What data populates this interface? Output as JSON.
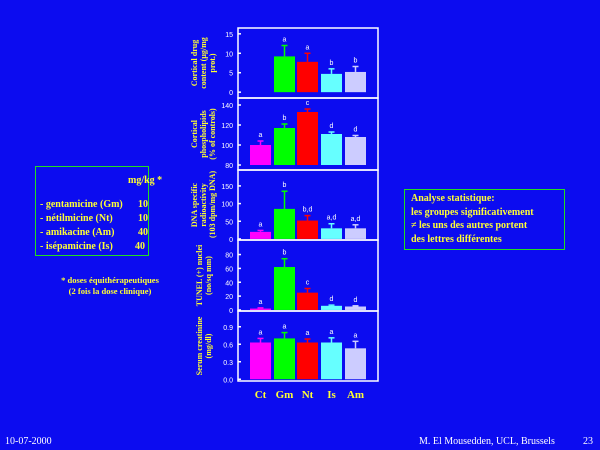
{
  "legend": {
    "unit_header": "mg/kg *",
    "items": [
      {
        "label": "- gentamicine (Gm)",
        "dose": "10"
      },
      {
        "label": "- nétilmicine (Nt)",
        "dose": "10"
      },
      {
        "label": "- amikacine (Am)",
        "dose": "40"
      },
      {
        "label": "- isépamicine (Is)",
        "dose": "40"
      }
    ],
    "note_line1": "* doses équithérapeutiques",
    "note_line2": "(2 fois la dose clinique)"
  },
  "stats_box": {
    "line1": "Analyse statistique:",
    "line2": "les groupes significativement",
    "line3": "≠ les uns des autres portent",
    "line4": "des lettres différentes"
  },
  "footer": {
    "date": "10-07-2000",
    "author": "M. El Mousedden, UCL, Brussels",
    "page": "23"
  },
  "colors": {
    "Ct": "#ff00ff",
    "Gm": "#00ff00",
    "Nt": "#ff0000",
    "Is": "#66ffff",
    "Am": "#ccccff"
  },
  "chart_data": [
    {
      "type": "bar",
      "ylabel": [
        "Cortical drug",
        "content (µg/mg",
        "prot.)"
      ],
      "yticks": [
        "0",
        "5",
        "10",
        "15"
      ],
      "ytick_values": [
        0,
        5,
        10,
        15
      ],
      "ylim": [
        -1.5,
        16.5
      ],
      "baseline": 0,
      "categories": [
        "Ct",
        "Gm",
        "Nt",
        "Is",
        "Am"
      ],
      "values": [
        null,
        9.2,
        7.8,
        4.7,
        5.2
      ],
      "errors": [
        null,
        2.8,
        2.2,
        1.3,
        1.4
      ],
      "letters": [
        "",
        "a",
        "a",
        "b",
        "b"
      ]
    },
    {
      "type": "bar",
      "ylabel": [
        "Cortical",
        "phospholipids",
        "(% of controls)"
      ],
      "yticks": [
        "80",
        "100",
        "120",
        "140"
      ],
      "ytick_values": [
        80,
        100,
        120,
        140
      ],
      "ylim": [
        75,
        147
      ],
      "baseline": 80,
      "categories": [
        "Ct",
        "Gm",
        "Nt",
        "Is",
        "Am"
      ],
      "values": [
        100,
        117,
        133,
        111,
        108
      ],
      "errors": [
        4,
        4,
        3,
        2,
        1.5
      ],
      "letters": [
        "a",
        "b",
        "c",
        "d",
        "d"
      ]
    },
    {
      "type": "bar",
      "ylabel": [
        "DNA specific",
        "radioactivity",
        "(103 dpm/mg DNA)"
      ],
      "yticks": [
        "0",
        "50",
        "100",
        "150"
      ],
      "ytick_values": [
        0,
        50,
        100,
        150
      ],
      "ylim": [
        -3,
        195
      ],
      "baseline": 0,
      "categories": [
        "Ct",
        "Gm",
        "Nt",
        "Is",
        "Am"
      ],
      "values": [
        20,
        85,
        52,
        30,
        30
      ],
      "errors": [
        4,
        50,
        14,
        13,
        10
      ],
      "letters": [
        "a",
        "b",
        "b,d",
        "a,d",
        "a,d"
      ]
    },
    {
      "type": "bar",
      "ylabel": [
        "TUNEL (+) nuclei",
        "(no/sq mm)"
      ],
      "yticks": [
        "0",
        "20",
        "40",
        "60",
        "80"
      ],
      "ytick_values": [
        0,
        20,
        40,
        60,
        80
      ],
      "ylim": [
        -1.5,
        101
      ],
      "baseline": 0,
      "categories": [
        "Ct",
        "Gm",
        "Nt",
        "Is",
        "Am"
      ],
      "values": [
        2,
        62,
        25,
        6,
        5
      ],
      "errors": [
        1,
        12,
        6,
        1,
        1
      ],
      "letters": [
        "a",
        "b",
        "c",
        "d",
        "d"
      ]
    },
    {
      "type": "bar",
      "ylabel": [
        "Serum creatinine",
        "(mg/dl)"
      ],
      "yticks": [
        "0.0",
        "0.3",
        "0.6",
        "0.9"
      ],
      "ytick_values": [
        0,
        0.3,
        0.6,
        0.9
      ],
      "ylim": [
        -0.03,
        1.17
      ],
      "baseline": 0,
      "categories": [
        "Ct",
        "Gm",
        "Nt",
        "Is",
        "Am"
      ],
      "values": [
        0.63,
        0.7,
        0.63,
        0.63,
        0.53
      ],
      "errors": [
        0.07,
        0.1,
        0.06,
        0.08,
        0.12
      ],
      "letters": [
        "a",
        "a",
        "a",
        "a",
        "a"
      ]
    }
  ]
}
